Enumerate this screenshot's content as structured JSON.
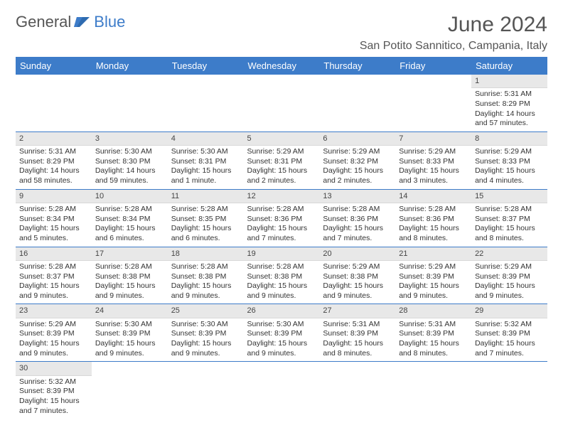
{
  "logo": {
    "part1": "General",
    "part2": "Blue"
  },
  "title": "June 2024",
  "location": "San Potito Sannitico, Campania, Italy",
  "colors": {
    "header_bg": "#3d7cc9",
    "header_text": "#ffffff",
    "daynum_bg": "#e8e8e8",
    "border": "#3d7cc9"
  },
  "columns": [
    "Sunday",
    "Monday",
    "Tuesday",
    "Wednesday",
    "Thursday",
    "Friday",
    "Saturday"
  ],
  "weeks": [
    [
      null,
      null,
      null,
      null,
      null,
      null,
      {
        "n": "1",
        "sr": "Sunrise: 5:31 AM",
        "ss": "Sunset: 8:29 PM",
        "d1": "Daylight: 14 hours",
        "d2": "and 57 minutes."
      }
    ],
    [
      {
        "n": "2",
        "sr": "Sunrise: 5:31 AM",
        "ss": "Sunset: 8:29 PM",
        "d1": "Daylight: 14 hours",
        "d2": "and 58 minutes."
      },
      {
        "n": "3",
        "sr": "Sunrise: 5:30 AM",
        "ss": "Sunset: 8:30 PM",
        "d1": "Daylight: 14 hours",
        "d2": "and 59 minutes."
      },
      {
        "n": "4",
        "sr": "Sunrise: 5:30 AM",
        "ss": "Sunset: 8:31 PM",
        "d1": "Daylight: 15 hours",
        "d2": "and 1 minute."
      },
      {
        "n": "5",
        "sr": "Sunrise: 5:29 AM",
        "ss": "Sunset: 8:31 PM",
        "d1": "Daylight: 15 hours",
        "d2": "and 2 minutes."
      },
      {
        "n": "6",
        "sr": "Sunrise: 5:29 AM",
        "ss": "Sunset: 8:32 PM",
        "d1": "Daylight: 15 hours",
        "d2": "and 2 minutes."
      },
      {
        "n": "7",
        "sr": "Sunrise: 5:29 AM",
        "ss": "Sunset: 8:33 PM",
        "d1": "Daylight: 15 hours",
        "d2": "and 3 minutes."
      },
      {
        "n": "8",
        "sr": "Sunrise: 5:29 AM",
        "ss": "Sunset: 8:33 PM",
        "d1": "Daylight: 15 hours",
        "d2": "and 4 minutes."
      }
    ],
    [
      {
        "n": "9",
        "sr": "Sunrise: 5:28 AM",
        "ss": "Sunset: 8:34 PM",
        "d1": "Daylight: 15 hours",
        "d2": "and 5 minutes."
      },
      {
        "n": "10",
        "sr": "Sunrise: 5:28 AM",
        "ss": "Sunset: 8:34 PM",
        "d1": "Daylight: 15 hours",
        "d2": "and 6 minutes."
      },
      {
        "n": "11",
        "sr": "Sunrise: 5:28 AM",
        "ss": "Sunset: 8:35 PM",
        "d1": "Daylight: 15 hours",
        "d2": "and 6 minutes."
      },
      {
        "n": "12",
        "sr": "Sunrise: 5:28 AM",
        "ss": "Sunset: 8:36 PM",
        "d1": "Daylight: 15 hours",
        "d2": "and 7 minutes."
      },
      {
        "n": "13",
        "sr": "Sunrise: 5:28 AM",
        "ss": "Sunset: 8:36 PM",
        "d1": "Daylight: 15 hours",
        "d2": "and 7 minutes."
      },
      {
        "n": "14",
        "sr": "Sunrise: 5:28 AM",
        "ss": "Sunset: 8:36 PM",
        "d1": "Daylight: 15 hours",
        "d2": "and 8 minutes."
      },
      {
        "n": "15",
        "sr": "Sunrise: 5:28 AM",
        "ss": "Sunset: 8:37 PM",
        "d1": "Daylight: 15 hours",
        "d2": "and 8 minutes."
      }
    ],
    [
      {
        "n": "16",
        "sr": "Sunrise: 5:28 AM",
        "ss": "Sunset: 8:37 PM",
        "d1": "Daylight: 15 hours",
        "d2": "and 9 minutes."
      },
      {
        "n": "17",
        "sr": "Sunrise: 5:28 AM",
        "ss": "Sunset: 8:38 PM",
        "d1": "Daylight: 15 hours",
        "d2": "and 9 minutes."
      },
      {
        "n": "18",
        "sr": "Sunrise: 5:28 AM",
        "ss": "Sunset: 8:38 PM",
        "d1": "Daylight: 15 hours",
        "d2": "and 9 minutes."
      },
      {
        "n": "19",
        "sr": "Sunrise: 5:28 AM",
        "ss": "Sunset: 8:38 PM",
        "d1": "Daylight: 15 hours",
        "d2": "and 9 minutes."
      },
      {
        "n": "20",
        "sr": "Sunrise: 5:29 AM",
        "ss": "Sunset: 8:38 PM",
        "d1": "Daylight: 15 hours",
        "d2": "and 9 minutes."
      },
      {
        "n": "21",
        "sr": "Sunrise: 5:29 AM",
        "ss": "Sunset: 8:39 PM",
        "d1": "Daylight: 15 hours",
        "d2": "and 9 minutes."
      },
      {
        "n": "22",
        "sr": "Sunrise: 5:29 AM",
        "ss": "Sunset: 8:39 PM",
        "d1": "Daylight: 15 hours",
        "d2": "and 9 minutes."
      }
    ],
    [
      {
        "n": "23",
        "sr": "Sunrise: 5:29 AM",
        "ss": "Sunset: 8:39 PM",
        "d1": "Daylight: 15 hours",
        "d2": "and 9 minutes."
      },
      {
        "n": "24",
        "sr": "Sunrise: 5:30 AM",
        "ss": "Sunset: 8:39 PM",
        "d1": "Daylight: 15 hours",
        "d2": "and 9 minutes."
      },
      {
        "n": "25",
        "sr": "Sunrise: 5:30 AM",
        "ss": "Sunset: 8:39 PM",
        "d1": "Daylight: 15 hours",
        "d2": "and 9 minutes."
      },
      {
        "n": "26",
        "sr": "Sunrise: 5:30 AM",
        "ss": "Sunset: 8:39 PM",
        "d1": "Daylight: 15 hours",
        "d2": "and 9 minutes."
      },
      {
        "n": "27",
        "sr": "Sunrise: 5:31 AM",
        "ss": "Sunset: 8:39 PM",
        "d1": "Daylight: 15 hours",
        "d2": "and 8 minutes."
      },
      {
        "n": "28",
        "sr": "Sunrise: 5:31 AM",
        "ss": "Sunset: 8:39 PM",
        "d1": "Daylight: 15 hours",
        "d2": "and 8 minutes."
      },
      {
        "n": "29",
        "sr": "Sunrise: 5:32 AM",
        "ss": "Sunset: 8:39 PM",
        "d1": "Daylight: 15 hours",
        "d2": "and 7 minutes."
      }
    ],
    [
      {
        "n": "30",
        "sr": "Sunrise: 5:32 AM",
        "ss": "Sunset: 8:39 PM",
        "d1": "Daylight: 15 hours",
        "d2": "and 7 minutes."
      },
      null,
      null,
      null,
      null,
      null,
      null
    ]
  ]
}
